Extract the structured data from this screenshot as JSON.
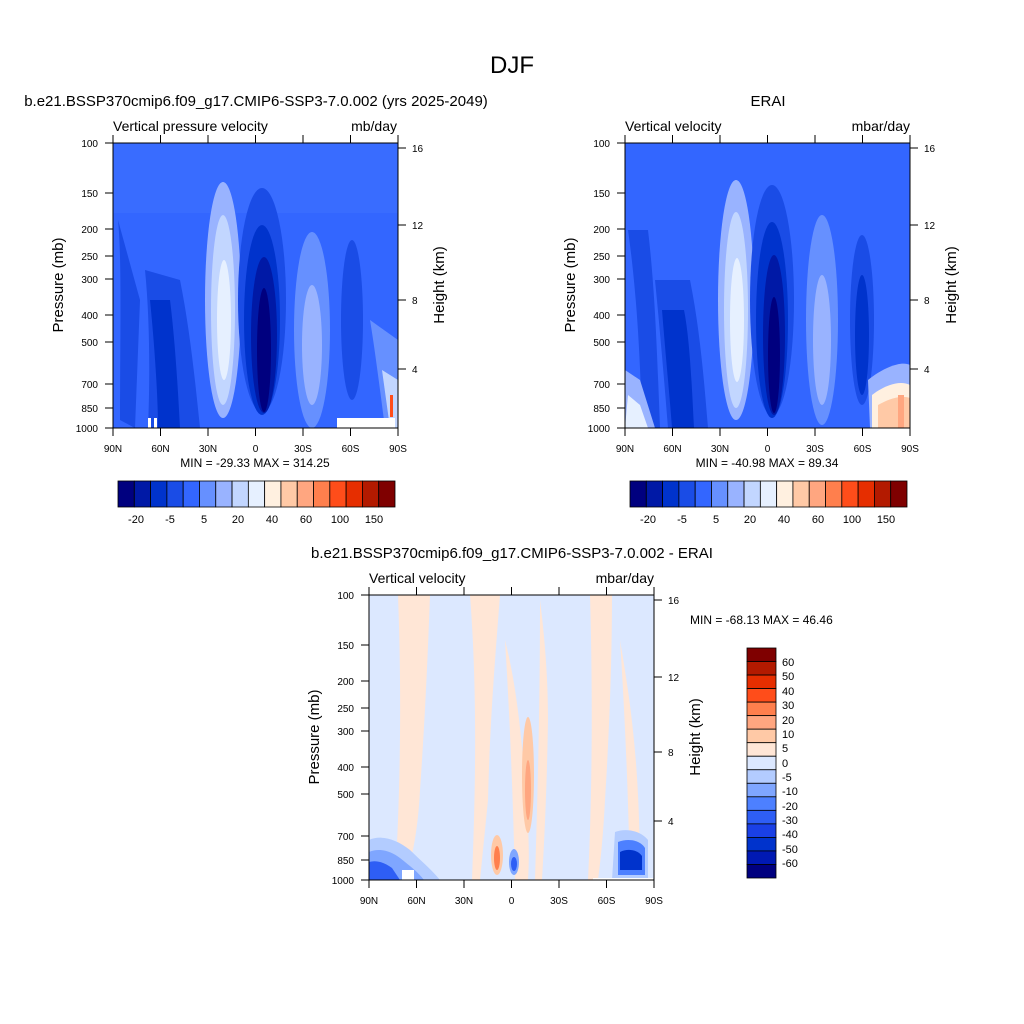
{
  "main_title": "DJF",
  "colors": {
    "abs_scale": [
      "#00007f",
      "#0019a6",
      "#0033cc",
      "#1a4ce6",
      "#3366ff",
      "#6690ff",
      "#99b3ff",
      "#c2d6ff",
      "#e6f0ff",
      "#fff0e0",
      "#ffc9a6",
      "#ffa680",
      "#ff7f4d",
      "#ff4d1a",
      "#e62e00",
      "#b31a00",
      "#7f0000"
    ],
    "diff_scale": [
      "#00007f",
      "#0019b3",
      "#0033cc",
      "#1a40e6",
      "#2e5ef5",
      "#4d80ff",
      "#7fa6ff",
      "#b3ccff",
      "#dce8ff",
      "#ffe6d6",
      "#ffc9a6",
      "#ffa680",
      "#ff7f4d",
      "#ff4d1a",
      "#e62e00",
      "#b31a00",
      "#7f0000"
    ]
  },
  "chart_data": [
    {
      "type": "heatmap",
      "title": "b.e21.BSSP370cmip6.f09_g17.CMIP6-SSP3-7.0.002 (yrs 2025-2049)",
      "left_string": "Vertical pressure velocity",
      "right_string": "mb/day",
      "ylabel": "Pressure (mb)",
      "ylabel_right": "Height (km)",
      "x_ticks": [
        "90N",
        "60N",
        "30N",
        "0",
        "30S",
        "60S",
        "90S"
      ],
      "y_ticks": [
        "100",
        "150",
        "200",
        "250",
        "300",
        "400",
        "500",
        "700",
        "850",
        "1000"
      ],
      "y_right_ticks": [
        "16",
        "12",
        "8",
        "4"
      ],
      "stats": "MIN = -29.33  MAX = 314.25",
      "colorbar_labels": [
        "-20",
        "-5",
        "5",
        "20",
        "40",
        "60",
        "100",
        "150"
      ],
      "colorbar_orientation": "horizontal",
      "y_scale": "log",
      "ylim": [
        1000,
        100
      ],
      "xlim": [
        "90N",
        "90S"
      ]
    },
    {
      "type": "heatmap",
      "title": "ERAI",
      "left_string": "Vertical velocity",
      "right_string": "mbar/day",
      "ylabel": "Pressure (mb)",
      "ylabel_right": "Height (km)",
      "x_ticks": [
        "90N",
        "60N",
        "30N",
        "0",
        "30S",
        "60S",
        "90S"
      ],
      "y_ticks": [
        "100",
        "150",
        "200",
        "250",
        "300",
        "400",
        "500",
        "700",
        "850",
        "1000"
      ],
      "y_right_ticks": [
        "16",
        "12",
        "8",
        "4"
      ],
      "stats": "MIN = -40.98  MAX =  89.34",
      "colorbar_labels": [
        "-20",
        "-5",
        "5",
        "20",
        "40",
        "60",
        "100",
        "150"
      ],
      "colorbar_orientation": "horizontal",
      "y_scale": "log",
      "ylim": [
        1000,
        100
      ],
      "xlim": [
        "90N",
        "90S"
      ]
    },
    {
      "type": "heatmap",
      "title": "b.e21.BSSP370cmip6.f09_g17.CMIP6-SSP3-7.0.002 - ERAI",
      "left_string": "Vertical velocity",
      "right_string": "mbar/day",
      "ylabel": "Pressure (mb)",
      "ylabel_right": "Height (km)",
      "x_ticks": [
        "90N",
        "60N",
        "30N",
        "0",
        "30S",
        "60S",
        "90S"
      ],
      "y_ticks": [
        "100",
        "150",
        "200",
        "250",
        "300",
        "400",
        "500",
        "700",
        "850",
        "1000"
      ],
      "y_right_ticks": [
        "16",
        "12",
        "8",
        "4"
      ],
      "stats": "MIN = -68.13  MAX =  46.46",
      "colorbar_labels": [
        "60",
        "50",
        "40",
        "30",
        "20",
        "10",
        "5",
        "0",
        "-5",
        "-10",
        "-20",
        "-30",
        "-40",
        "-50",
        "-60"
      ],
      "colorbar_orientation": "vertical",
      "y_scale": "log",
      "ylim": [
        1000,
        100
      ],
      "xlim": [
        "90N",
        "90S"
      ]
    }
  ]
}
